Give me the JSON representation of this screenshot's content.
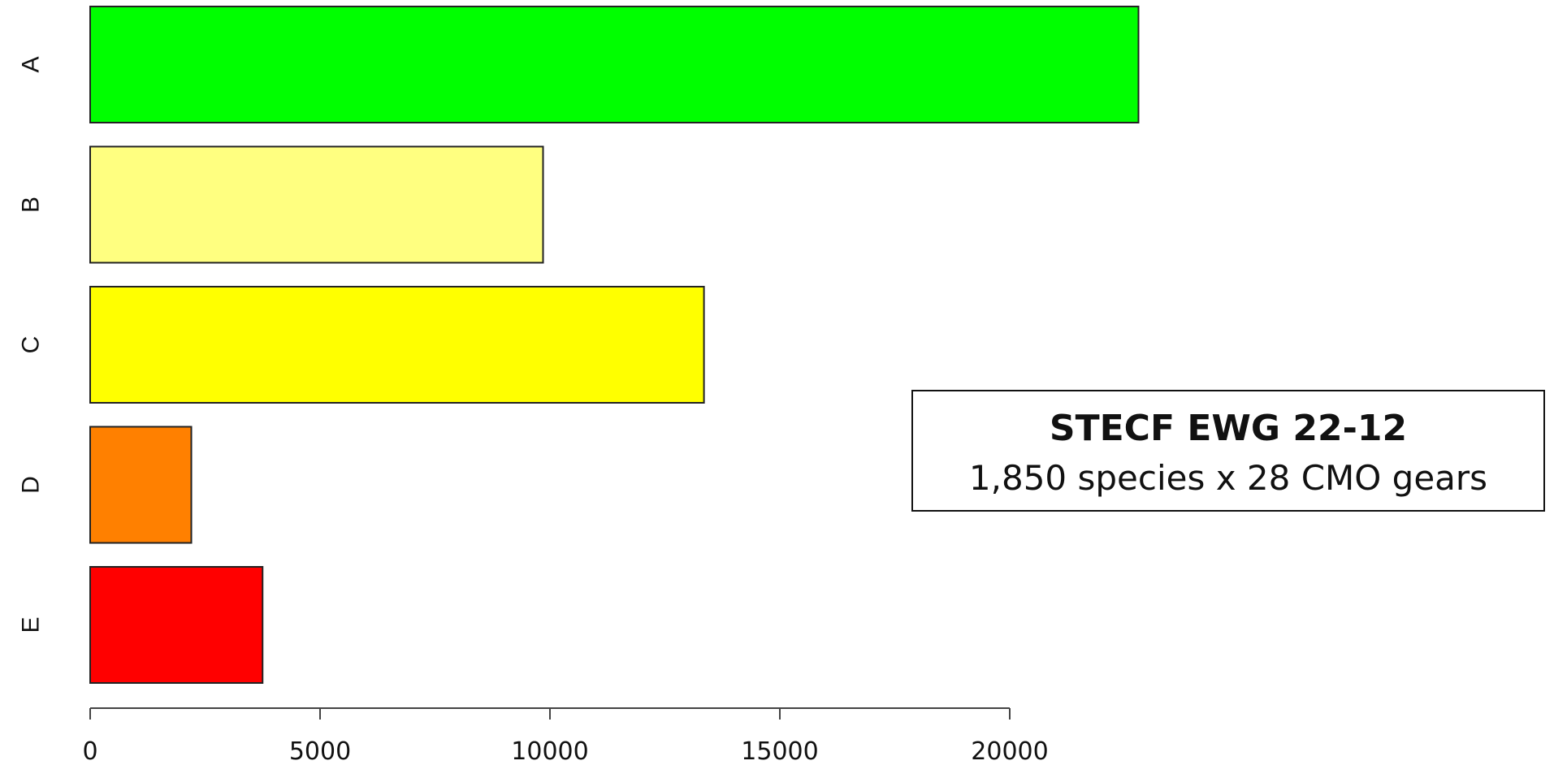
{
  "chart_data": {
    "type": "bar",
    "orientation": "horizontal",
    "categories": [
      "A",
      "B",
      "C",
      "D",
      "E"
    ],
    "values": [
      22800,
      9850,
      13350,
      2200,
      3750
    ],
    "colors": [
      "#00ff00",
      "#ffff80",
      "#ffff00",
      "#ff8000",
      "#ff0000"
    ],
    "xticks": [
      0,
      5000,
      10000,
      15000,
      20000
    ],
    "xlim": [
      0,
      22800
    ],
    "title": "",
    "xlabel": "",
    "ylabel": "",
    "grid": false
  },
  "info_box": {
    "title": "STECF EWG 22-12",
    "subtitle": "1,850 species x 28 CMO gears"
  }
}
